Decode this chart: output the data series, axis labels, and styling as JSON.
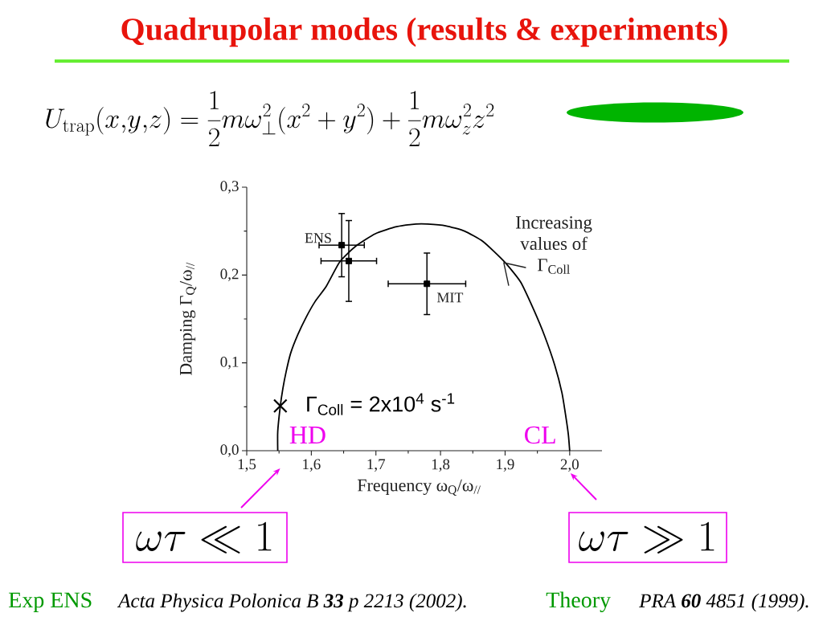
{
  "chart_data": {
    "type": "scatter",
    "title": "Quadrupolar modes (results & experiments)",
    "xlabel": "Frequency ω$_{Q}$/ω$_{//}$",
    "ylabel": "Damping Γ$_{Q}$/ω$_{//}$",
    "xlim": [
      1.5,
      2.05
    ],
    "ylim": [
      0,
      0.3
    ],
    "xticks": [
      {
        "value": 1.5,
        "label": "1,5"
      },
      {
        "value": 1.6,
        "label": "1,6"
      },
      {
        "value": 1.7,
        "label": "1,7"
      },
      {
        "value": 1.8,
        "label": "1,8"
      },
      {
        "value": 1.9,
        "label": "1,9"
      },
      {
        "value": 2.0,
        "label": "2,0"
      }
    ],
    "yticks": [
      {
        "value": 0,
        "label": "0,0"
      },
      {
        "value": 0.1,
        "label": "0,1"
      },
      {
        "value": 0.2,
        "label": "0,2"
      },
      {
        "value": 0.3,
        "label": "0,3"
      }
    ],
    "series": [
      {
        "type": "line",
        "color": "#000000",
        "x": [
          1.548,
          1.548,
          1.552,
          1.556,
          1.561,
          1.568,
          1.579,
          1.592,
          1.606,
          1.623,
          1.644,
          1.669,
          1.699,
          1.732,
          1.762,
          1.78,
          1.808,
          1.837,
          1.866,
          1.899,
          1.924,
          1.944,
          1.961,
          1.977,
          1.988,
          1.994,
          1.998,
          2.0
        ],
        "values": [
          0,
          0.022,
          0.051,
          0.071,
          0.09,
          0.111,
          0.132,
          0.152,
          0.17,
          0.187,
          0.215,
          0.233,
          0.247,
          0.255,
          0.258,
          0.258,
          0.256,
          0.25,
          0.238,
          0.215,
          0.192,
          0.161,
          0.131,
          0.097,
          0.066,
          0.039,
          0.018,
          0
        ]
      },
      {
        "name": "ENS",
        "type": "scatter",
        "marker": "square",
        "color": "#000000",
        "x": [
          1.647,
          1.658
        ],
        "values": [
          0.234,
          0.216
        ],
        "xerrors": [
          0.035,
          0.043
        ],
        "errors": [
          0.036,
          0.046
        ]
      },
      {
        "name": "MIT",
        "type": "scatter",
        "marker": "square",
        "color": "#000000",
        "x": [
          1.779
        ],
        "values": [
          0.19
        ],
        "xerrors": [
          0.06
        ],
        "errors": [
          0.035
        ]
      },
      {
        "type": "scatter",
        "marker": "cross",
        "color": "#000000",
        "x": [
          1.552
        ],
        "values": [
          0.051
        ]
      }
    ],
    "annotations": [
      "U_{\\mathrm{trap}}(x{,}y{,}z) = \\frac{1}{2}m\\omega_{\\perp}^{2}(x^{2}+y^{2})+\\frac{1}{2}m\\omega_{z}^{2}z^{2}",
      {
        "text": "Γ$_{Coll}$ = 2x10$^{4}$ s$^{-1}$",
        "x": 1.552,
        "y": 0.051
      },
      {
        "text": "Increasing values of Γ$_{Coll}$",
        "x": 1.898,
        "y": 0.214
      },
      {
        "text": "HD",
        "x": 1.548,
        "y": 0
      },
      {
        "text": "CL",
        "x": 2.0,
        "y": 0
      },
      "\\omega\\tau \\ll 1",
      "\\omega\\tau \\gg 1",
      "Exp ENS",
      "Acta Physica Polonica B **33** p 2213 (2002).",
      "Theory",
      "PRA **60** 4851 (1999)."
    ]
  }
}
